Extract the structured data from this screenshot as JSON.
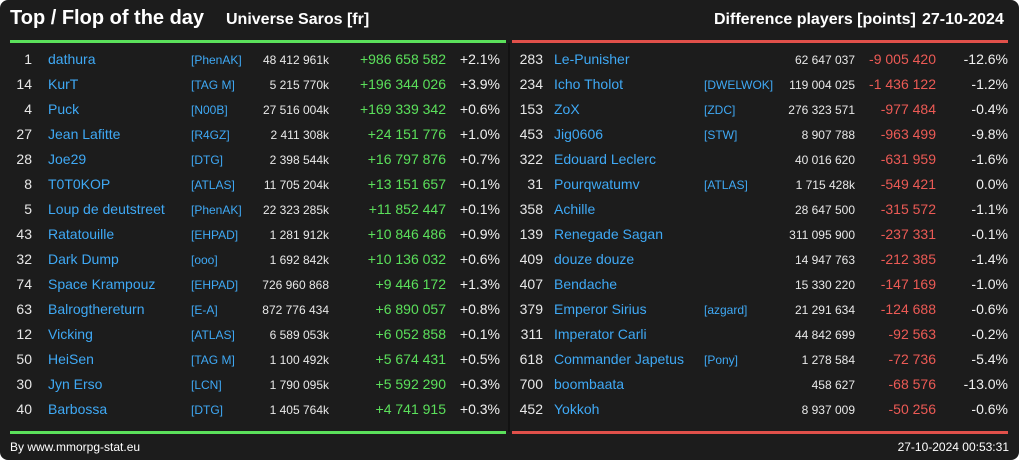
{
  "header": {
    "title": "Top / Flop of the day",
    "universe": "Universe Saros [fr]",
    "metric": "Difference players [points]",
    "date": "27-10-2024"
  },
  "colors": {
    "background": "#1c1c1c",
    "top_accent": "#5be05b",
    "flop_accent": "#e0504a",
    "link": "#3fa9f5"
  },
  "top": [
    {
      "rank": "1",
      "name": "dathura",
      "alliance": "[PhenAK]",
      "points": "48 412 961k",
      "delta": "+986 658 582",
      "pct": "+2.1%"
    },
    {
      "rank": "14",
      "name": "KurT",
      "alliance": "[TAG M]",
      "points": "5 215 770k",
      "delta": "+196 344 026",
      "pct": "+3.9%"
    },
    {
      "rank": "4",
      "name": "Puck",
      "alliance": "[N00B]",
      "points": "27 516 004k",
      "delta": "+169 339 342",
      "pct": "+0.6%"
    },
    {
      "rank": "27",
      "name": "Jean Lafitte",
      "alliance": "[R4GZ]",
      "points": "2 411 308k",
      "delta": "+24 151 776",
      "pct": "+1.0%"
    },
    {
      "rank": "28",
      "name": "Joe29",
      "alliance": "[DTG]",
      "points": "2 398 544k",
      "delta": "+16 797 876",
      "pct": "+0.7%"
    },
    {
      "rank": "8",
      "name": "T0T0KOP",
      "alliance": "[ATLAS]",
      "points": "11 705 204k",
      "delta": "+13 151 657",
      "pct": "+0.1%"
    },
    {
      "rank": "5",
      "name": "Loup de deutstreet",
      "alliance": "[PhenAK]",
      "points": "22 323 285k",
      "delta": "+11 852 447",
      "pct": "+0.1%"
    },
    {
      "rank": "43",
      "name": "Ratatouille",
      "alliance": "[EHPAD]",
      "points": "1 281 912k",
      "delta": "+10 846 486",
      "pct": "+0.9%"
    },
    {
      "rank": "32",
      "name": "Dark Dump",
      "alliance": "[ooo]",
      "points": "1 692 842k",
      "delta": "+10 136 032",
      "pct": "+0.6%"
    },
    {
      "rank": "74",
      "name": "Space Krampouz",
      "alliance": "[EHPAD]",
      "points": "726 960 868",
      "delta": "+9 446 172",
      "pct": "+1.3%"
    },
    {
      "rank": "63",
      "name": "Balrogthereturn",
      "alliance": "[E-A]",
      "points": "872 776 434",
      "delta": "+6 890 057",
      "pct": "+0.8%"
    },
    {
      "rank": "12",
      "name": "Vicking",
      "alliance": "[ATLAS]",
      "points": "6 589 053k",
      "delta": "+6 052 858",
      "pct": "+0.1%"
    },
    {
      "rank": "50",
      "name": "HeiSen",
      "alliance": "[TAG M]",
      "points": "1 100 492k",
      "delta": "+5 674 431",
      "pct": "+0.5%"
    },
    {
      "rank": "30",
      "name": "Jyn Erso",
      "alliance": "[LCN]",
      "points": "1 790 095k",
      "delta": "+5 592 290",
      "pct": "+0.3%"
    },
    {
      "rank": "40",
      "name": "Barbossa",
      "alliance": "[DTG]",
      "points": "1 405 764k",
      "delta": "+4 741 915",
      "pct": "+0.3%"
    }
  ],
  "flop": [
    {
      "rank": "283",
      "name": "Le-Punisher",
      "alliance": "",
      "points": "62 647 037",
      "delta": "-9 005 420",
      "pct": "-12.6%"
    },
    {
      "rank": "234",
      "name": "Icho Tholot",
      "alliance": "[DWELWOK]",
      "points": "119 004 025",
      "delta": "-1 436 122",
      "pct": "-1.2%"
    },
    {
      "rank": "153",
      "name": "ZoX",
      "alliance": "[ZDC]",
      "points": "276 323 571",
      "delta": "-977 484",
      "pct": "-0.4%"
    },
    {
      "rank": "453",
      "name": "Jig0606",
      "alliance": "[STW]",
      "points": "8 907 788",
      "delta": "-963 499",
      "pct": "-9.8%"
    },
    {
      "rank": "322",
      "name": "Edouard Leclerc",
      "alliance": "",
      "points": "40 016 620",
      "delta": "-631 959",
      "pct": "-1.6%"
    },
    {
      "rank": "31",
      "name": "Pourqwatumv",
      "alliance": "[ATLAS]",
      "points": "1 715 428k",
      "delta": "-549 421",
      "pct": "0.0%"
    },
    {
      "rank": "358",
      "name": "Achille",
      "alliance": "",
      "points": "28 647 500",
      "delta": "-315 572",
      "pct": "-1.1%"
    },
    {
      "rank": "139",
      "name": "Renegade Sagan",
      "alliance": "",
      "points": "311 095 900",
      "delta": "-237 331",
      "pct": "-0.1%"
    },
    {
      "rank": "409",
      "name": "douze douze",
      "alliance": "",
      "points": "14 947 763",
      "delta": "-212 385",
      "pct": "-1.4%"
    },
    {
      "rank": "407",
      "name": "Bendache",
      "alliance": "",
      "points": "15 330 220",
      "delta": "-147 169",
      "pct": "-1.0%"
    },
    {
      "rank": "379",
      "name": "Emperor Sirius",
      "alliance": "[azgard]",
      "points": "21 291 634",
      "delta": "-124 688",
      "pct": "-0.6%"
    },
    {
      "rank": "311",
      "name": "Imperator Carli",
      "alliance": "",
      "points": "44 842 699",
      "delta": "-92 563",
      "pct": "-0.2%"
    },
    {
      "rank": "618",
      "name": "Commander Japetus",
      "alliance": "[Pony]",
      "points": "1 278 584",
      "delta": "-72 736",
      "pct": "-5.4%"
    },
    {
      "rank": "700",
      "name": "boombaata",
      "alliance": "",
      "points": "458 627",
      "delta": "-68 576",
      "pct": "-13.0%"
    },
    {
      "rank": "452",
      "name": "Yokkoh",
      "alliance": "",
      "points": "8 937 009",
      "delta": "-50 256",
      "pct": "-0.6%"
    }
  ],
  "footer": {
    "source": "By www.mmorpg-stat.eu",
    "timestamp": "27-10-2024 00:53:31"
  }
}
